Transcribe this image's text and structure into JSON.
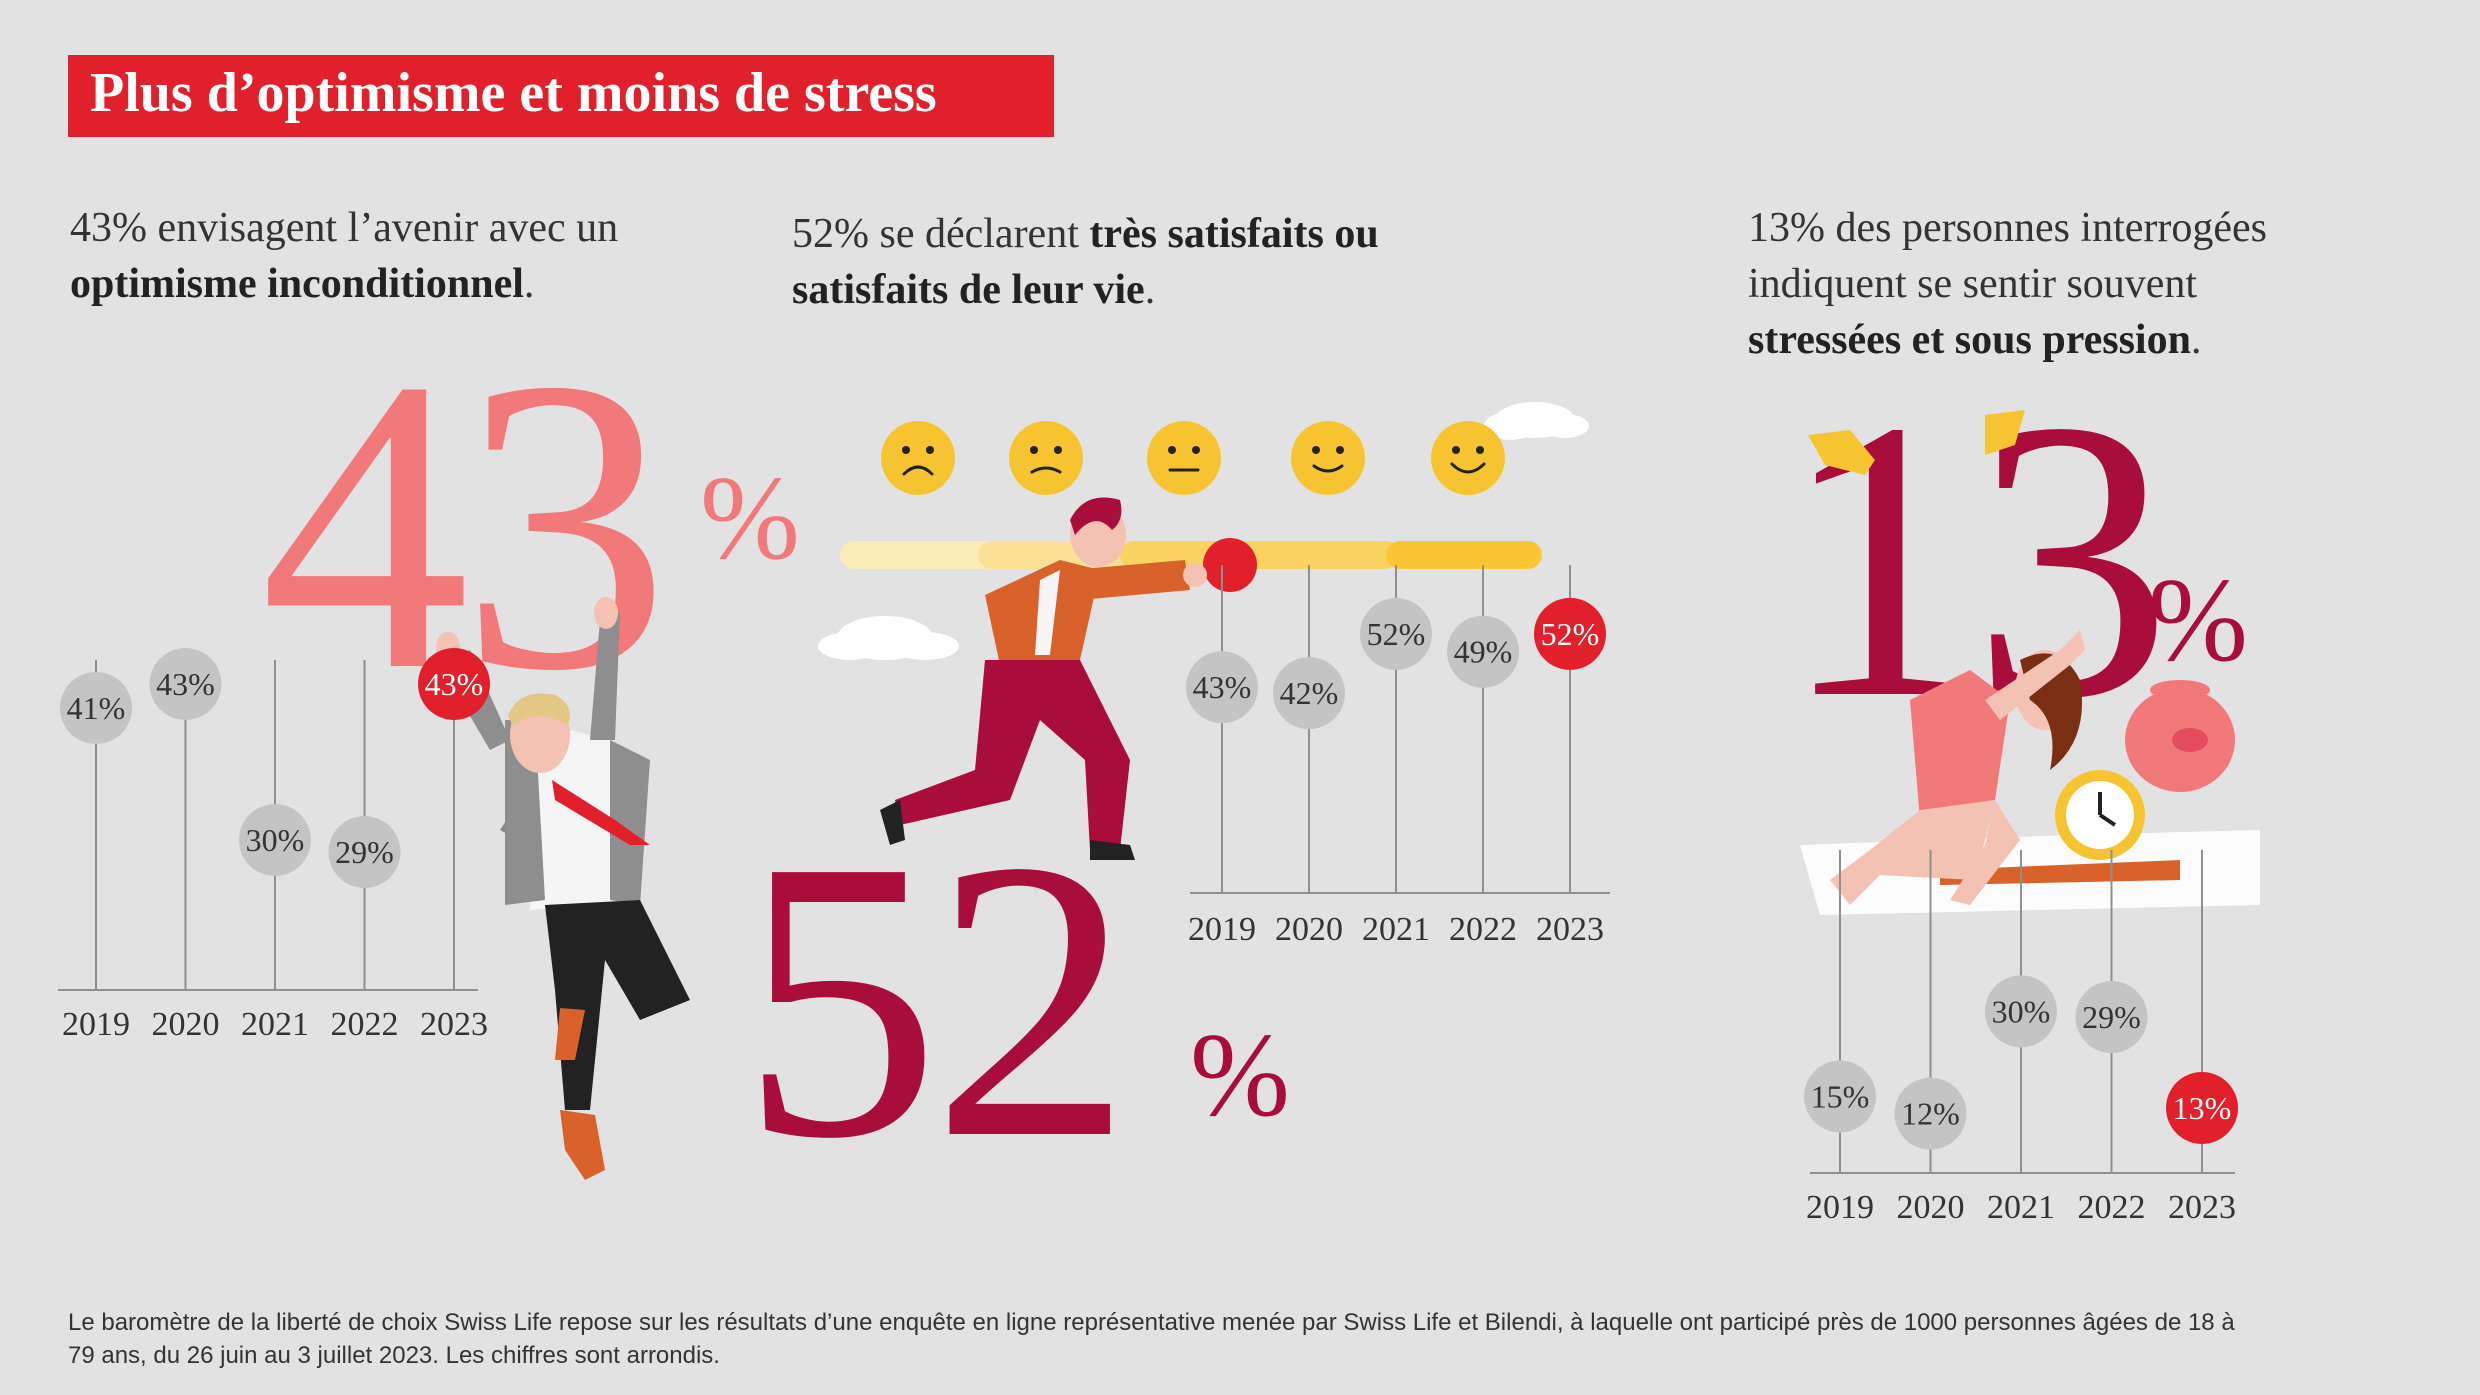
{
  "title": "Plus d’optimisme et moins de stress",
  "sections": [
    {
      "lead_plain_1": "43% envisagent l’avenir avec un",
      "lead_bold": "optimisme inconditionnel",
      "lead_plain_2": ".",
      "big_number": "43",
      "big_unit": "%",
      "big_color": "#f2797a"
    },
    {
      "lead_plain_1": "52% se déclarent ",
      "lead_bold": "très satisfaits ou satisfaits de leur vie",
      "lead_plain_2": ".",
      "big_number": "52",
      "big_unit": "%",
      "big_color": "#a90d3c"
    },
    {
      "lead_plain_1": "13% des personnes interrogées indiquent se sentir souvent",
      "lead_bold": "stressées et sous pression",
      "lead_plain_2": ".",
      "big_number": "13",
      "big_unit": "%",
      "big_color": "#a90d3c"
    }
  ],
  "colors": {
    "accent_red": "#e1202c",
    "dot_grey": "#c4c4c4",
    "line_grey": "#8f8f8f",
    "background": "#e2e2e2"
  },
  "satisfaction_scale": {
    "icons": [
      "very-sad-face-icon",
      "sad-face-icon",
      "neutral-face-icon",
      "smile-face-icon",
      "happy-face-icon"
    ],
    "colors": [
      "#fbecb8",
      "#fbe196",
      "#fad363",
      "#fac634"
    ]
  },
  "chart_data": [
    {
      "type": "scatter",
      "name": "optimism",
      "categories": [
        "2019",
        "2020",
        "2021",
        "2022",
        "2023"
      ],
      "values": [
        41,
        43,
        30,
        29,
        43
      ],
      "labels": [
        "41%",
        "43%",
        "30%",
        "29%",
        "43%"
      ],
      "highlight_index": 4
    },
    {
      "type": "scatter",
      "name": "satisfaction",
      "categories": [
        "2019",
        "2020",
        "2021",
        "2022",
        "2023"
      ],
      "values": [
        43,
        42,
        52,
        49,
        52
      ],
      "labels": [
        "43%",
        "42%",
        "52%",
        "49%",
        "52%"
      ],
      "highlight_index": 4
    },
    {
      "type": "scatter",
      "name": "stress",
      "categories": [
        "2019",
        "2020",
        "2021",
        "2022",
        "2023"
      ],
      "values": [
        15,
        12,
        30,
        29,
        13
      ],
      "labels": [
        "15%",
        "12%",
        "30%",
        "29%",
        "13%"
      ],
      "highlight_index": 4
    }
  ],
  "footnote": "Le baromètre de la liberté de choix Swiss Life repose sur les résultats d’une enquête en ligne représentative menée par Swiss Life et Bilendi, à laquelle ont participé près de 1000 personnes âgées de 18 à 79 ans, du 26 juin au 3 juillet 2023. Les chiffres sont arrondis."
}
